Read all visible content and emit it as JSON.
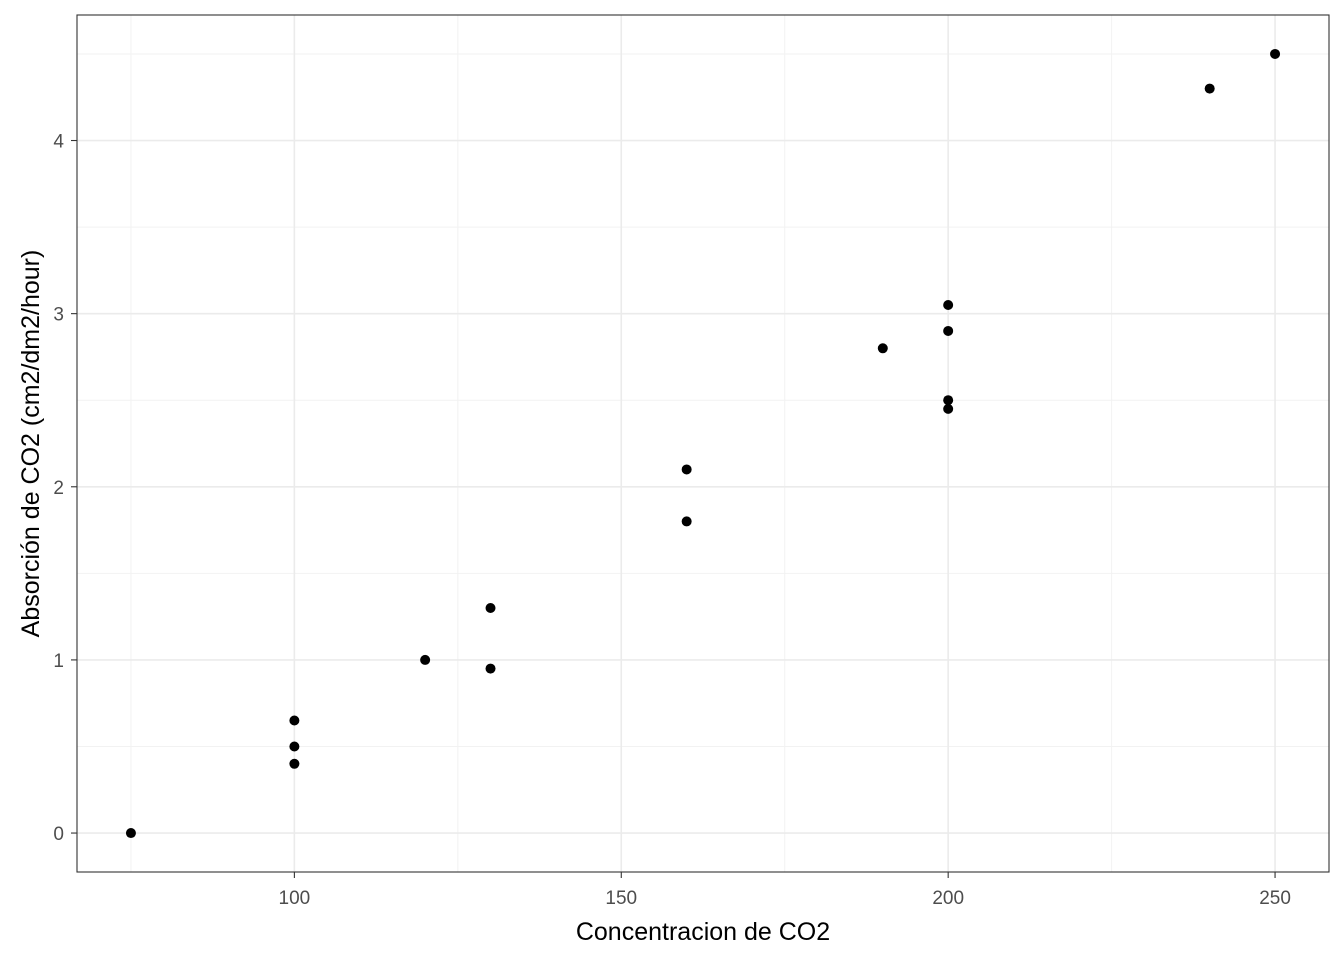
{
  "chart_data": {
    "type": "scatter",
    "title": "",
    "xlabel": "Concentracion de CO2",
    "ylabel": "Absorción de CO2 (cm2/dm2/hour)",
    "xlim": [
      66.75,
      258.25
    ],
    "ylim": [
      -0.225,
      4.725
    ],
    "x_ticks": [
      100,
      150,
      200,
      250
    ],
    "y_ticks": [
      0,
      1,
      2,
      3,
      4
    ],
    "x_tick_labels": [
      "100",
      "150",
      "200",
      "250"
    ],
    "y_tick_labels": [
      "0",
      "1",
      "2",
      "3",
      "4"
    ],
    "x_minor_ticks": [
      75,
      125,
      175,
      225
    ],
    "y_minor_ticks": [
      0.5,
      1.5,
      2.5,
      3.5,
      4.5
    ],
    "grid": true,
    "legend": "none",
    "point_color": "#000000",
    "points": [
      {
        "x": 75,
        "y": 0.0
      },
      {
        "x": 100,
        "y": 0.65
      },
      {
        "x": 100,
        "y": 0.5
      },
      {
        "x": 100,
        "y": 0.4
      },
      {
        "x": 120,
        "y": 1.0
      },
      {
        "x": 130,
        "y": 1.3
      },
      {
        "x": 130,
        "y": 0.95
      },
      {
        "x": 160,
        "y": 2.1
      },
      {
        "x": 160,
        "y": 1.8
      },
      {
        "x": 190,
        "y": 2.8
      },
      {
        "x": 200,
        "y": 3.05
      },
      {
        "x": 200,
        "y": 2.9
      },
      {
        "x": 200,
        "y": 2.5
      },
      {
        "x": 200,
        "y": 2.45
      },
      {
        "x": 240,
        "y": 4.3
      },
      {
        "x": 250,
        "y": 4.5
      }
    ]
  }
}
